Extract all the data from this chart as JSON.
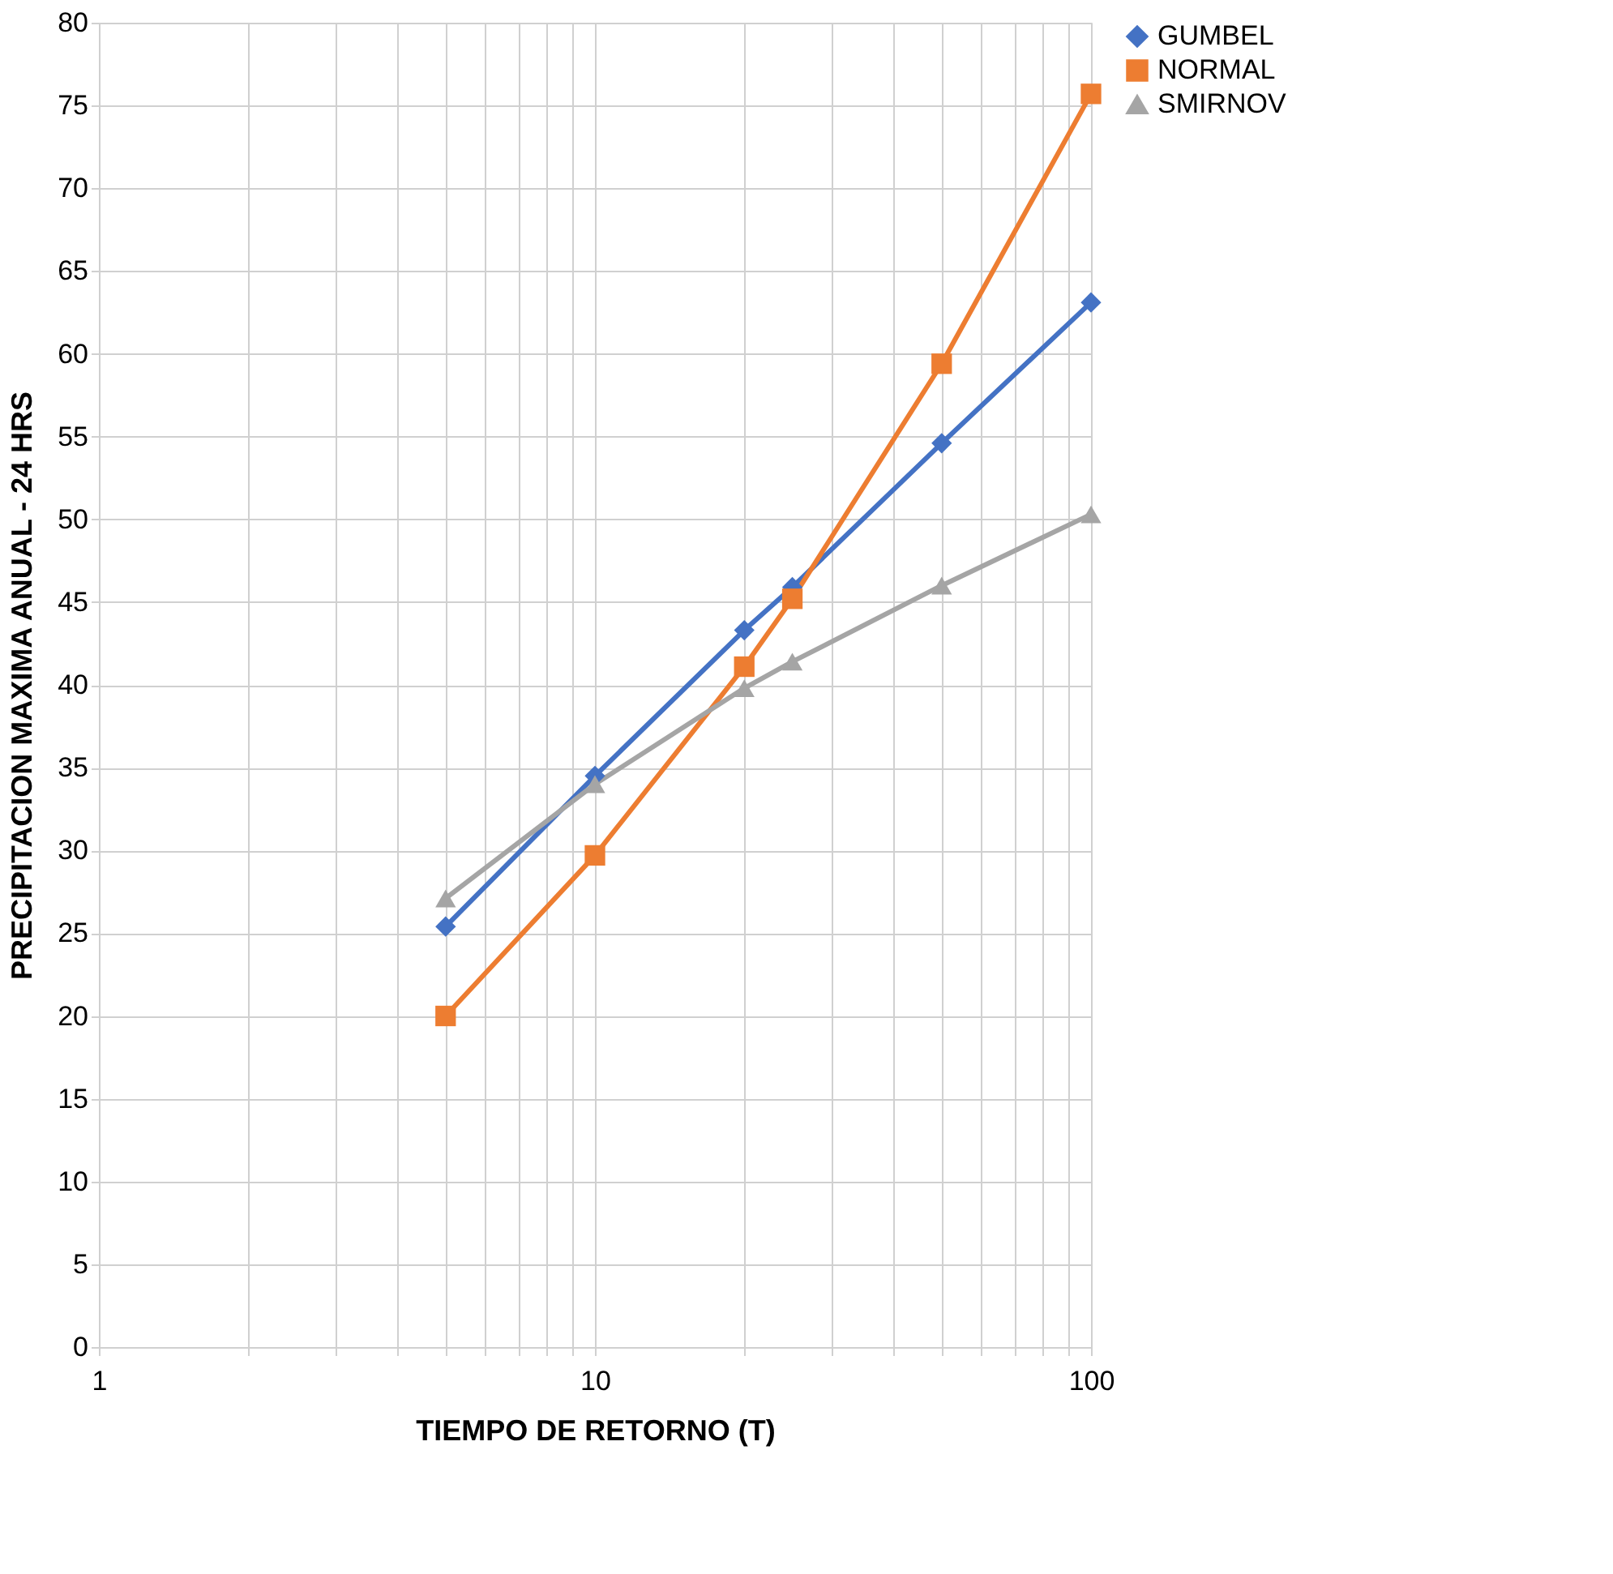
{
  "chart_data": {
    "type": "line",
    "xlabel": "TIEMPO DE RETORNO (T)",
    "ylabel": "PRECIPITACION MAXIMA ANUAL - 24 HRS",
    "x": [
      5,
      10,
      20,
      25,
      50,
      100
    ],
    "series": [
      {
        "name": "GUMBEL",
        "color": "#4472c4",
        "marker": "diamond",
        "values": [
          25.4,
          34.5,
          43.3,
          45.9,
          54.6,
          63.1
        ]
      },
      {
        "name": "NORMAL",
        "color": "#ed7d31",
        "marker": "square",
        "values": [
          20.0,
          29.7,
          41.1,
          45.2,
          59.4,
          75.7
        ]
      },
      {
        "name": "SMIRNOV",
        "color": "#a5a5a5",
        "marker": "triangle",
        "values": [
          27.1,
          34.0,
          39.8,
          41.4,
          46.0,
          50.3
        ]
      }
    ],
    "log": "x",
    "xlim": [
      1,
      100
    ],
    "xticks": [
      1,
      {
        "value": 2,
        "label": null
      },
      {
        "value": 3,
        "label": null
      },
      {
        "value": 4,
        "label": null
      },
      {
        "value": 5,
        "label": null
      },
      {
        "value": 6,
        "label": null
      },
      {
        "value": 7,
        "label": null
      },
      {
        "value": 8,
        "label": null
      },
      {
        "value": 9,
        "label": null
      },
      10,
      {
        "value": 20,
        "label": null
      },
      {
        "value": 30,
        "label": null
      },
      {
        "value": 40,
        "label": null
      },
      {
        "value": 50,
        "label": null
      },
      {
        "value": 60,
        "label": null
      },
      {
        "value": 70,
        "label": null
      },
      {
        "value": 80,
        "label": null
      },
      {
        "value": 90,
        "label": null
      },
      100
    ],
    "ylim": [
      0,
      80
    ],
    "yticks": [
      0,
      5,
      10,
      15,
      20,
      25,
      30,
      35,
      40,
      45,
      50,
      55,
      60,
      65,
      70,
      75,
      80
    ],
    "grid": true,
    "legend": "right"
  }
}
